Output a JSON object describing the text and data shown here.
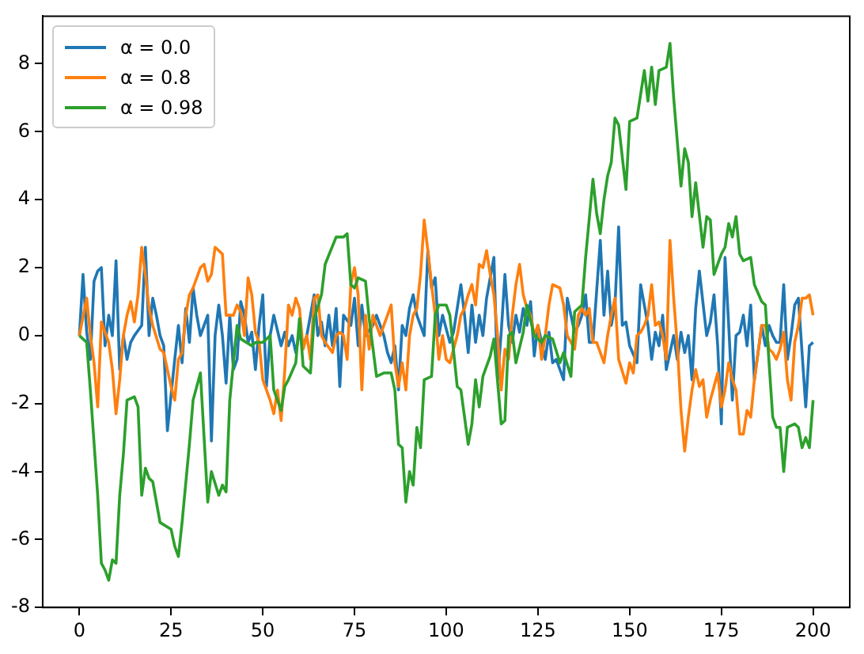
{
  "chart_data": {
    "type": "line",
    "xlim": [
      -10,
      210
    ],
    "ylim": [
      -8,
      9.4
    ],
    "xticks": [
      0,
      25,
      50,
      75,
      100,
      125,
      150,
      175,
      200
    ],
    "yticks": [
      -8,
      -6,
      -4,
      -2,
      0,
      2,
      4,
      6,
      8
    ],
    "grid": false,
    "legend": "top left",
    "series": [
      {
        "name": "α = 0.0",
        "color": "#1f77b4",
        "x": [
          0,
          1,
          2,
          3,
          4,
          5,
          6,
          7,
          8,
          9,
          10,
          11,
          12,
          13,
          14,
          15,
          17,
          18,
          19,
          20,
          21,
          22,
          23,
          24,
          26,
          27,
          28,
          29,
          30,
          31,
          32,
          33,
          35,
          36,
          37,
          38,
          39,
          40,
          41,
          42,
          43,
          44,
          45,
          46,
          47,
          48,
          49,
          50,
          51,
          52,
          53,
          55,
          56,
          57,
          58,
          59,
          60,
          61,
          62,
          64,
          65,
          66,
          67,
          68,
          69,
          70,
          71,
          72,
          74,
          75,
          76,
          77,
          78,
          80,
          81,
          83,
          84,
          85,
          86,
          87,
          88,
          89,
          90,
          91,
          92,
          94,
          95,
          96,
          97,
          98,
          99,
          101,
          102,
          104,
          105,
          106,
          107,
          108,
          109,
          110,
          111,
          113,
          114,
          115,
          116,
          117,
          118,
          119,
          120,
          121,
          122,
          123,
          124,
          125,
          127,
          128,
          129,
          130,
          131,
          132,
          133,
          134,
          135,
          136,
          137,
          138,
          139,
          140,
          142,
          143,
          144,
          145,
          146,
          147,
          148,
          149,
          150,
          152,
          153,
          154,
          155,
          156,
          157,
          158,
          159,
          160,
          162,
          163,
          164,
          165,
          166,
          167,
          168,
          169,
          171,
          172,
          173,
          174,
          175,
          176,
          177,
          178,
          179,
          180,
          181,
          182,
          183,
          184,
          186,
          187,
          188,
          189,
          190,
          191,
          192,
          193,
          194,
          195,
          196,
          198,
          199,
          200
        ],
        "values": [
          0,
          1.8,
          0.1,
          -0.7,
          1.6,
          1.9,
          2.0,
          -0.3,
          0.6,
          0,
          2.2,
          -1.0,
          0,
          -0.7,
          -0.2,
          0,
          0.3,
          2.6,
          0,
          1.1,
          0.6,
          0,
          -0.3,
          -2.8,
          -0.7,
          0.3,
          -0.8,
          0.8,
          -0.2,
          1.4,
          0.6,
          0,
          0.6,
          -3.1,
          0,
          0.9,
          0,
          -1.4,
          0.6,
          -1.0,
          -0.7,
          1.0,
          0.6,
          -0.2,
          0.1,
          -1.0,
          0.3,
          1.2,
          -1.5,
          0,
          0.6,
          -0.3,
          0.1,
          -0.3,
          0,
          -0.5,
          0.1,
          -0.3,
          0,
          1.2,
          0,
          0.4,
          -0.3,
          0.6,
          -0.3,
          0.8,
          -1.5,
          0.6,
          0.3,
          1.1,
          -0.3,
          0.9,
          0,
          0.3,
          0.6,
          0,
          -0.5,
          -0.8,
          -0.3,
          -1.6,
          0.3,
          0,
          0.8,
          1.2,
          0.6,
          0,
          2.5,
          1.4,
          1.7,
          0,
          0.6,
          -0.2,
          0.1,
          1.5,
          0.6,
          -0.5,
          0.9,
          -0.2,
          0.6,
          0,
          1.1,
          2.3,
          -1.3,
          0.1,
          1.8,
          0.3,
          -0.2,
          0.6,
          0.1,
          0.8,
          0.3,
          1.0,
          -0.6,
          0.3,
          -0.7,
          0.1,
          -0.8,
          -0.7,
          -1.0,
          -1.3,
          1.1,
          0.6,
          0.1,
          0.3,
          0.6,
          1.2,
          -0.2,
          -0.2,
          2.8,
          0.6,
          1.9,
          0.3,
          0.9,
          3.2,
          0.3,
          0.4,
          -0.3,
          -0.8,
          1.5,
          0.9,
          0.3,
          -0.7,
          0.1,
          -0.3,
          0.6,
          -1.0,
          0,
          -0.7,
          0.1,
          -0.5,
          0,
          -1.3,
          0.8,
          1.9,
          0,
          0.4,
          1.2,
          -0.3,
          -2.6,
          2.3,
          0.3,
          -1.9,
          0,
          0.1,
          0.6,
          -0.3,
          0.9,
          -1.3,
          0.3,
          -0.3,
          0.3,
          0,
          -0.2,
          -0.2,
          1.5,
          -0.7,
          0,
          0.9,
          1.1,
          -2.1,
          -0.3,
          -0.2
        ]
      },
      {
        "name": "α = 0.8",
        "color": "#ff7f0e",
        "x": [
          0,
          2,
          3,
          4,
          5,
          6,
          7,
          8,
          9,
          10,
          11,
          12,
          13,
          14,
          15,
          16,
          17,
          18,
          19,
          20,
          22,
          23,
          24,
          25,
          26,
          27,
          28,
          29,
          30,
          31,
          33,
          34,
          35,
          36,
          37,
          38,
          39,
          40,
          42,
          43,
          44,
          45,
          46,
          47,
          48,
          49,
          50,
          52,
          53,
          54,
          55,
          56,
          57,
          58,
          59,
          60,
          61,
          62,
          63,
          64,
          65,
          66,
          67,
          69,
          70,
          71,
          72,
          73,
          74,
          75,
          76,
          77,
          78,
          79,
          80,
          82,
          83,
          84,
          85,
          86,
          87,
          88,
          89,
          90,
          91,
          92,
          93,
          94,
          95,
          96,
          97,
          98,
          99,
          100,
          101,
          103,
          104,
          105,
          106,
          107,
          108,
          109,
          110,
          111,
          112,
          113,
          114,
          115,
          116,
          117,
          118,
          119,
          120,
          121,
          122,
          123,
          124,
          125,
          126,
          127,
          128,
          129,
          131,
          132,
          133,
          135,
          136,
          137,
          138,
          139,
          140,
          141,
          143,
          144,
          145,
          146,
          147,
          149,
          150,
          151,
          152,
          153,
          154,
          155,
          156,
          157,
          158,
          159,
          160,
          161,
          162,
          163,
          164,
          165,
          166,
          167,
          168,
          169,
          170,
          171,
          172,
          173,
          174,
          175,
          176,
          177,
          178,
          179,
          180,
          181,
          182,
          183,
          184,
          186,
          187,
          188,
          189,
          190,
          191,
          192,
          193,
          194,
          195,
          196,
          197,
          198,
          199,
          200
        ],
        "values": [
          0,
          1.1,
          0,
          -0.8,
          -2.1,
          0.4,
          0.1,
          -0.2,
          -1.0,
          -2.3,
          -1.3,
          0,
          0.6,
          1.0,
          0.4,
          1.2,
          2.6,
          1.8,
          0.8,
          0.3,
          -0.4,
          -0.5,
          -1.0,
          -1.5,
          -1.9,
          -0.7,
          -0.5,
          0.6,
          1.2,
          1.4,
          2.0,
          2.1,
          1.6,
          1.8,
          2.6,
          2.5,
          2.4,
          0.6,
          0.6,
          0.9,
          0.7,
          0,
          1.7,
          1.2,
          0.1,
          -0.2,
          -1.3,
          -1.9,
          -2.3,
          -1.6,
          -2.5,
          -1.0,
          0.9,
          0.6,
          1.1,
          0.8,
          -0.4,
          0,
          -0.7,
          1.1,
          1.2,
          0,
          -0.2,
          -0.5,
          0,
          0.1,
          0,
          -0.7,
          1.5,
          2.0,
          1.2,
          -1.6,
          0.6,
          -0.4,
          0.6,
          0,
          0.3,
          0.6,
          0.9,
          -0.8,
          -1.5,
          -0.8,
          -1.6,
          0,
          0.6,
          0.8,
          1.8,
          3.4,
          2.5,
          1.5,
          0.6,
          -0.7,
          0,
          -0.7,
          -0.8,
          0,
          0.6,
          0.8,
          1.2,
          1.5,
          0.9,
          2.1,
          2.0,
          2.5,
          1.8,
          1.2,
          0,
          -1.6,
          -0.4,
          -0.7,
          0.6,
          1.5,
          2.1,
          1.2,
          0.8,
          0.6,
          0,
          0.3,
          -0.7,
          0,
          0.9,
          1.5,
          1.4,
          0.9,
          0,
          -0.4,
          0.6,
          0.8,
          0.6,
          0.8,
          -0.2,
          -0.2,
          -0.8,
          0,
          0.6,
          1.1,
          -0.7,
          -1.4,
          -0.8,
          -1.1,
          0,
          0.1,
          0.3,
          0.6,
          1.5,
          0.3,
          0.4,
          0,
          -0.7,
          2.8,
          1.1,
          -0.3,
          -2.2,
          -3.4,
          -2.4,
          -1.6,
          -1.0,
          -1.5,
          -1.3,
          -2.4,
          -1.9,
          -1.5,
          -1.1,
          -2.1,
          -1.6,
          -0.8,
          -1.3,
          -1.6,
          -2.9,
          -2.9,
          -2.2,
          -2.4,
          -1.3,
          0.3,
          0.3,
          -0.4,
          -0.5,
          -0.7,
          -0.4,
          0.1,
          -1.3,
          -1.9,
          -0.2,
          0.3,
          1.1,
          1.1,
          1.2,
          0.6
        ]
      },
      {
        "name": "α = 0.98",
        "color": "#2ca02c",
        "x": [
          0,
          2,
          3,
          5,
          6,
          7,
          8,
          9,
          10,
          11,
          12,
          13,
          15,
          16,
          17,
          18,
          19,
          20,
          22,
          25,
          26,
          27,
          28,
          30,
          31,
          33,
          34,
          35,
          36,
          38,
          39,
          40,
          41,
          43,
          44,
          47,
          48,
          50,
          52,
          53,
          55,
          56,
          57,
          59,
          60,
          61,
          63,
          64,
          66,
          67,
          70,
          72,
          73,
          74,
          75,
          76,
          78,
          79,
          81,
          83,
          85,
          86,
          87,
          88,
          89,
          90,
          91,
          92,
          93,
          94,
          96,
          97,
          98,
          100,
          101,
          103,
          104,
          106,
          107,
          108,
          109,
          110,
          112,
          113,
          115,
          116,
          117,
          118,
          119,
          121,
          122,
          124,
          126,
          127,
          129,
          131,
          132,
          134,
          135,
          137,
          138,
          140,
          141,
          142,
          143,
          144,
          145,
          146,
          147,
          149,
          150,
          152,
          154,
          155,
          156,
          157,
          158,
          160,
          161,
          162,
          164,
          165,
          166,
          167,
          168,
          170,
          171,
          172,
          173,
          175,
          176,
          177,
          178,
          179,
          180,
          181,
          183,
          184,
          186,
          187,
          188,
          189,
          190,
          191,
          192,
          193,
          195,
          196,
          197,
          198,
          199,
          200
        ],
        "values": [
          0,
          -0.2,
          -1.6,
          -4.7,
          -6.7,
          -6.9,
          -7.2,
          -6.6,
          -6.7,
          -4.7,
          -3.5,
          -1.9,
          -1.8,
          -2.1,
          -4.7,
          -3.9,
          -4.2,
          -4.3,
          -5.5,
          -5.7,
          -6.2,
          -6.5,
          -5.5,
          -3.2,
          -1.9,
          -1.1,
          -3.0,
          -4.9,
          -4.0,
          -4.7,
          -4.4,
          -4.6,
          -1.9,
          0.3,
          -0.1,
          -0.3,
          -0.2,
          -0.2,
          0,
          -1.6,
          -2.2,
          -1.5,
          -1.3,
          -0.8,
          0.5,
          -0.9,
          -1.1,
          0.5,
          1.2,
          2.1,
          2.9,
          2.9,
          3.0,
          1.5,
          1.4,
          1.7,
          1.6,
          0.5,
          -1.2,
          -1.1,
          -1.1,
          -1.6,
          -3.2,
          -3.3,
          -4.9,
          -4.0,
          -4.4,
          -2.7,
          -3.3,
          -1.3,
          -1.2,
          0.6,
          0.9,
          0.9,
          0.6,
          -1.5,
          -1.6,
          -3.2,
          -2.6,
          -1.3,
          -2.1,
          -1.2,
          -0.6,
          -0.1,
          -2.6,
          -2.5,
          0,
          0.1,
          -0.8,
          0.1,
          0.9,
          0,
          -0.2,
          0,
          -0.1,
          -0.8,
          -0.5,
          -1.2,
          0.7,
          0.9,
          2.3,
          4.6,
          3.6,
          3.0,
          4.0,
          4.7,
          5.1,
          6.4,
          6.2,
          4.3,
          6.3,
          6.4,
          7.8,
          6.9,
          7.9,
          6.8,
          7.8,
          7.9,
          8.6,
          7.0,
          4.4,
          5.5,
          5.1,
          3.5,
          4.5,
          2.6,
          3.5,
          3.4,
          1.8,
          2.4,
          2.6,
          3.3,
          2.9,
          3.5,
          2.4,
          2.2,
          2.3,
          1.5,
          1.0,
          0.9,
          -0.8,
          -2.4,
          -2.7,
          -2.7,
          -4.0,
          -2.7,
          -2.6,
          -2.7,
          -3.3,
          -3.0,
          -3.3,
          -1.9
        ]
      }
    ]
  }
}
